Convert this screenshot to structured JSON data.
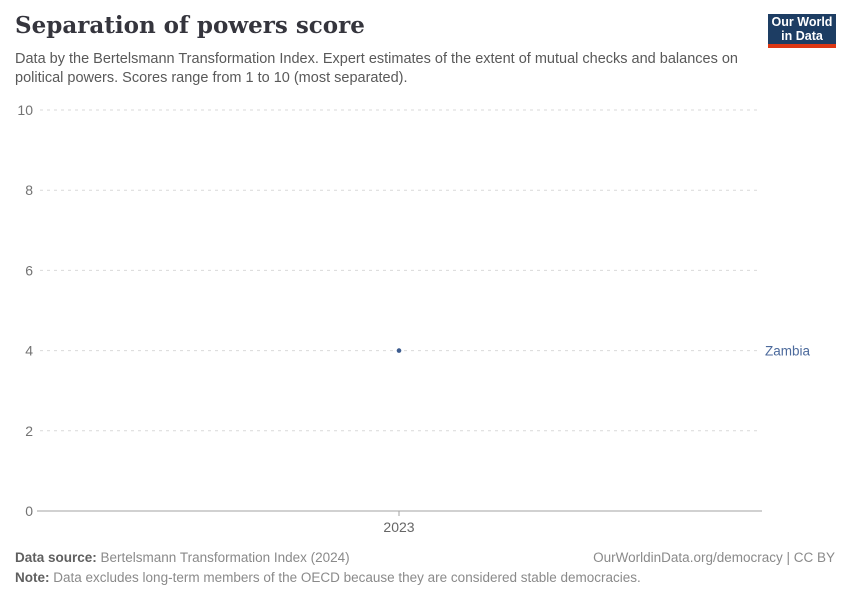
{
  "header": {
    "title": "Separation of powers score",
    "subtitle": "Data by the Bertelsmann Transformation Index. Expert estimates of the extent of mutual checks and balances on political powers. Scores range from 1 to 10 (most separated).",
    "logo": {
      "line1": "Our World",
      "line2": "in Data",
      "bg_color": "#1d3d63",
      "accent_color": "#dc3714"
    }
  },
  "chart_data": {
    "type": "scatter",
    "title": "Separation of powers score",
    "x": [
      2023
    ],
    "x_ticks": [
      "2023"
    ],
    "y_ticks": [
      0,
      2,
      4,
      6,
      8,
      10
    ],
    "ylim": [
      0,
      10
    ],
    "grid": "horizontal-dashed",
    "legend_position": "right-of-point",
    "series": [
      {
        "name": "Zambia",
        "values": [
          4
        ],
        "color": "#3d5c8f",
        "label_color": "#4c6a9c"
      }
    ],
    "colors": {
      "grid": "#d9d9d9",
      "axis": "#a3a3a3"
    }
  },
  "footer": {
    "datasource_label": "Data source:",
    "datasource_value": " Bertelsmann Transformation Index (2024)",
    "attribution": "OurWorldinData.org/democracy | CC BY",
    "note_label": "Note:",
    "note_value": " Data excludes long-term members of the OECD because they are considered stable democracies."
  }
}
